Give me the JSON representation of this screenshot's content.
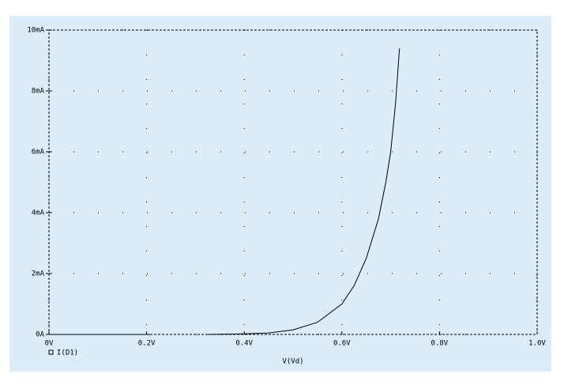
{
  "chart_data": {
    "type": "line",
    "x_label": "V(Vd)",
    "series": [
      {
        "name": "I(D1)",
        "color": "#000000",
        "x": [
          0,
          0.1,
          0.21,
          null,
          0.325,
          0.4,
          0.45,
          0.5,
          0.55,
          0.6,
          0.625,
          0.65,
          0.675,
          0.69,
          0.7,
          0.71,
          0.718
        ],
        "values": [
          0,
          0,
          0,
          null,
          0,
          0.02,
          0.05,
          0.15,
          0.4,
          1.0,
          1.6,
          2.5,
          3.8,
          5.0,
          6.0,
          7.6,
          9.4
        ]
      }
    ],
    "xlim": [
      0,
      1
    ],
    "xticks": [
      {
        "value": 0,
        "label": "0V"
      },
      {
        "value": 0.2,
        "label": "0.2V"
      },
      {
        "value": 0.4,
        "label": "0.4V"
      },
      {
        "value": 0.6,
        "label": "0.6V"
      },
      {
        "value": 0.8,
        "label": "0.8V"
      },
      {
        "value": 1.0,
        "label": "1.0V"
      }
    ],
    "ylim": [
      0,
      10
    ],
    "yticks": [
      {
        "value": 0,
        "label": "0A"
      },
      {
        "value": 2,
        "label": "2mA"
      },
      {
        "value": 4,
        "label": "4mA"
      },
      {
        "value": 6,
        "label": "6mA"
      },
      {
        "value": 8,
        "label": "8mA"
      },
      {
        "value": 10,
        "label": "10mA"
      }
    ],
    "grid": true
  }
}
